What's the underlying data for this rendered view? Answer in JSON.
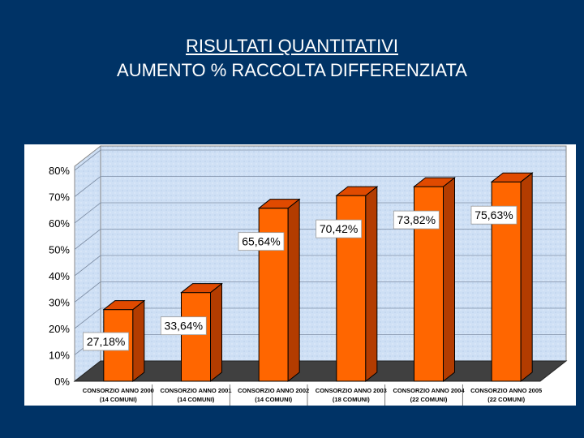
{
  "slide": {
    "title_line1": "RISULTATI QUANTITATIVI",
    "title_line2": "AUMENTO % RACCOLTA DIFFERENZIATA"
  },
  "chart_data": {
    "type": "bar",
    "title": "",
    "xlabel": "",
    "ylabel": "",
    "ylim": [
      0,
      80
    ],
    "yticks": [
      "0%",
      "10%",
      "20%",
      "30%",
      "40%",
      "50%",
      "60%",
      "70%",
      "80%"
    ],
    "grid": true,
    "categories": [
      [
        "CONSORZIO ANNO 2000",
        "(14 COMUNI)"
      ],
      [
        "CONSORZIO ANNO 2001",
        "(14 COMUNI)"
      ],
      [
        "CONSORZIO ANNO 2002",
        "(14 COMUNI)"
      ],
      [
        "CONSORZIO ANNO 2003",
        "(18 COMUNI)"
      ],
      [
        "CONSORZIO ANNO 2004",
        "(22 COMUNI)"
      ],
      [
        "CONSORZIO ANNO 2005",
        "(22 COMUNI)"
      ]
    ],
    "values": [
      27.18,
      33.64,
      65.64,
      70.42,
      73.82,
      75.63
    ],
    "data_labels": [
      "27,18%",
      "33,64%",
      "65,64%",
      "70,42%",
      "73,82%",
      "75,63%"
    ],
    "colors": {
      "bar_front": "#ff6600",
      "bar_side": "#b33c00",
      "bar_top": "#e04a00",
      "bar_outline": "#000000",
      "wall": "#cfe0f5",
      "floor": "#404040",
      "label_box": "#ffffff",
      "axis_text": "#000000",
      "title_text": "#ffffff",
      "background": "#003366"
    }
  }
}
